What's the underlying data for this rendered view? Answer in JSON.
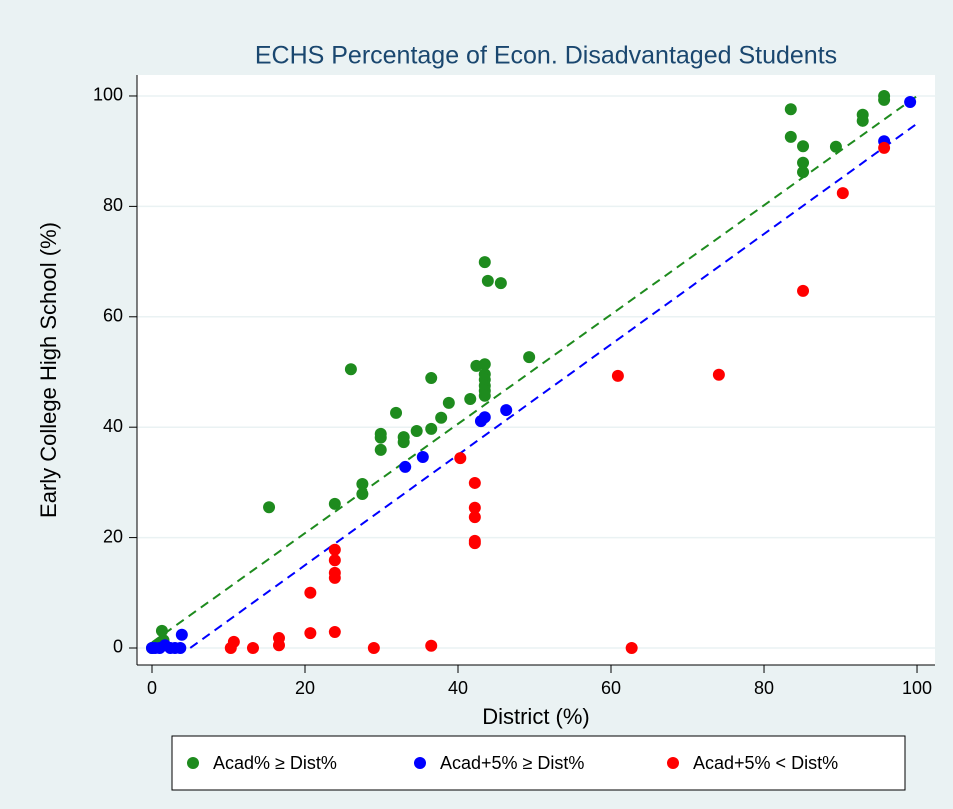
{
  "chart_data": {
    "type": "scatter",
    "title": "ECHS Percentage of Econ. Disadvantaged Students",
    "xlabel": "District (%)",
    "ylabel": "Early College High School (%)",
    "xlim": [
      -1.96,
      102.35
    ],
    "ylim": [
      -3.08,
      103.8
    ],
    "xticks": [
      0,
      20,
      40,
      60,
      80,
      100
    ],
    "yticks": [
      0,
      20,
      40,
      60,
      80,
      100
    ],
    "grid": true,
    "legend": "bottom",
    "series": [
      {
        "name": "Acad% ≥ Dist%",
        "color": "#1e8b1e",
        "x": [
          0,
          0.7,
          1.5,
          1.3,
          15.3,
          23.9,
          26,
          27.5,
          27.5,
          29.9,
          29.9,
          29.9,
          31.9,
          32.9,
          32.9,
          34.6,
          36.5,
          36.5,
          37.8,
          38.8,
          41.6,
          42.4,
          43.5,
          43.9,
          45.6,
          43.5,
          43.5,
          43.5,
          43.5,
          43.5,
          43.5,
          49.3,
          83.5,
          83.5,
          85.1,
          85.1,
          85.1,
          89.4,
          92.9,
          92.9,
          95.7,
          95.7
        ],
        "values": [
          0,
          0.5,
          1.4,
          3.1,
          25.5,
          26.1,
          50.5,
          29.7,
          27.9,
          38.8,
          38.1,
          35.9,
          42.6,
          38.2,
          37.3,
          39.3,
          48.9,
          39.7,
          41.7,
          44.4,
          45.1,
          51.1,
          69.9,
          66.5,
          66.1,
          51.4,
          49.6,
          48.6,
          47.5,
          46.6,
          45.7,
          52.7,
          97.6,
          92.6,
          90.9,
          87.9,
          86.2,
          90.8,
          96.6,
          95.5,
          100,
          99.3
        ]
      },
      {
        "name": "Acad+5% ≥ Dist%",
        "color": "#0000ff",
        "x": [
          0,
          0.4,
          1,
          1.7,
          2.4,
          3,
          3.7,
          3.9,
          33.1,
          35.4,
          43,
          43.5,
          46.3,
          95.7,
          99.1
        ],
        "values": [
          0,
          0,
          0,
          0.5,
          0,
          0,
          0,
          2.4,
          32.8,
          34.6,
          41.1,
          41.8,
          43.1,
          91.8,
          98.9
        ]
      },
      {
        "name": "Acad+5% < Dist%",
        "color": "#ff0000",
        "x": [
          10.3,
          10.7,
          13.2,
          16.6,
          16.6,
          20.7,
          20.7,
          23.9,
          23.9,
          23.9,
          23.9,
          23.9,
          29,
          36.5,
          40.3,
          42.2,
          42.2,
          42.2,
          42.2,
          42.2,
          60.9,
          62.7,
          74.1,
          85.1,
          90.3,
          95.7
        ],
        "values": [
          0,
          1.1,
          0,
          1.8,
          0.5,
          10,
          2.7,
          17.8,
          15.9,
          13.6,
          12.7,
          2.9,
          0,
          0.4,
          34.4,
          29.9,
          25.4,
          23.7,
          19.4,
          19,
          49.3,
          0,
          49.5,
          64.7,
          82.4,
          90.6
        ]
      }
    ],
    "fit_lines": [
      {
        "color": "#1e8b1e",
        "dashed": true,
        "x": [
          0,
          100
        ],
        "values": [
          1,
          100
        ]
      },
      {
        "color": "#0000ff",
        "dashed": true,
        "x": [
          5,
          100
        ],
        "values": [
          0,
          95
        ]
      }
    ]
  }
}
